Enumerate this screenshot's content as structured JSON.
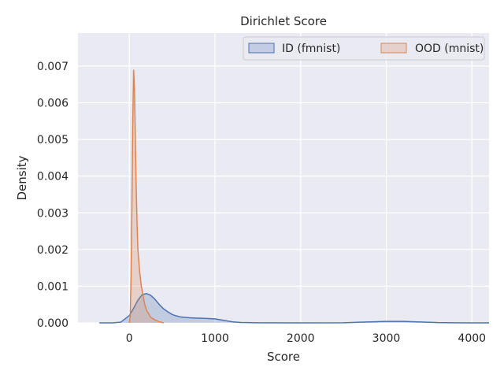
{
  "chart_data": {
    "type": "area",
    "title": "Dirichlet Score",
    "xlabel": "Score",
    "ylabel": "Density",
    "xlim": [
      -600,
      4200
    ],
    "ylim": [
      0,
      0.0079
    ],
    "xticks": [
      0,
      1000,
      2000,
      3000,
      4000
    ],
    "xtick_labels": [
      "0",
      "1000",
      "2000",
      "3000",
      "4000"
    ],
    "yticks": [
      0.0,
      0.001,
      0.002,
      0.003,
      0.004,
      0.005,
      0.006,
      0.007
    ],
    "ytick_labels": [
      "0.000",
      "0.001",
      "0.002",
      "0.003",
      "0.004",
      "0.005",
      "0.006",
      "0.007"
    ],
    "grid": true,
    "legend_position": "top-right",
    "legend_columns": 2,
    "series": [
      {
        "name": "ID (fmnist)",
        "color": "#4c72b0",
        "x": [
          -350,
          -200,
          -100,
          0,
          50,
          100,
          150,
          200,
          250,
          300,
          350,
          400,
          450,
          500,
          550,
          600,
          700,
          800,
          900,
          1000,
          1100,
          1200,
          1300,
          1500,
          2000,
          2500,
          2700,
          3000,
          3200,
          3400,
          3600,
          3800,
          4000,
          4200
        ],
        "y": [
          0.0,
          1e-06,
          2e-05,
          0.0002,
          0.0004,
          0.00062,
          0.00077,
          0.0008,
          0.00075,
          0.00064,
          0.0005,
          0.00038,
          0.0003,
          0.00023,
          0.00019,
          0.00016,
          0.00014,
          0.00013,
          0.00012,
          0.00011,
          7e-05,
          3e-05,
          1e-05,
          2e-06,
          0.0,
          2e-06,
          2e-05,
          4e-05,
          4e-05,
          2.5e-05,
          8e-06,
          2e-06,
          5e-07,
          0.0
        ]
      },
      {
        "name": "OOD (mnist)",
        "color": "#dd8452",
        "x": [
          0,
          10,
          20,
          30,
          40,
          50,
          60,
          70,
          80,
          90,
          100,
          120,
          140,
          160,
          180,
          200,
          250,
          300,
          350,
          400
        ],
        "y": [
          0.0,
          0.0002,
          0.0012,
          0.0032,
          0.0055,
          0.0069,
          0.0064,
          0.005,
          0.0037,
          0.0027,
          0.002,
          0.0014,
          0.001,
          0.00075,
          0.0005,
          0.00035,
          0.00015,
          8e-05,
          3e-05,
          0.0
        ]
      }
    ]
  }
}
